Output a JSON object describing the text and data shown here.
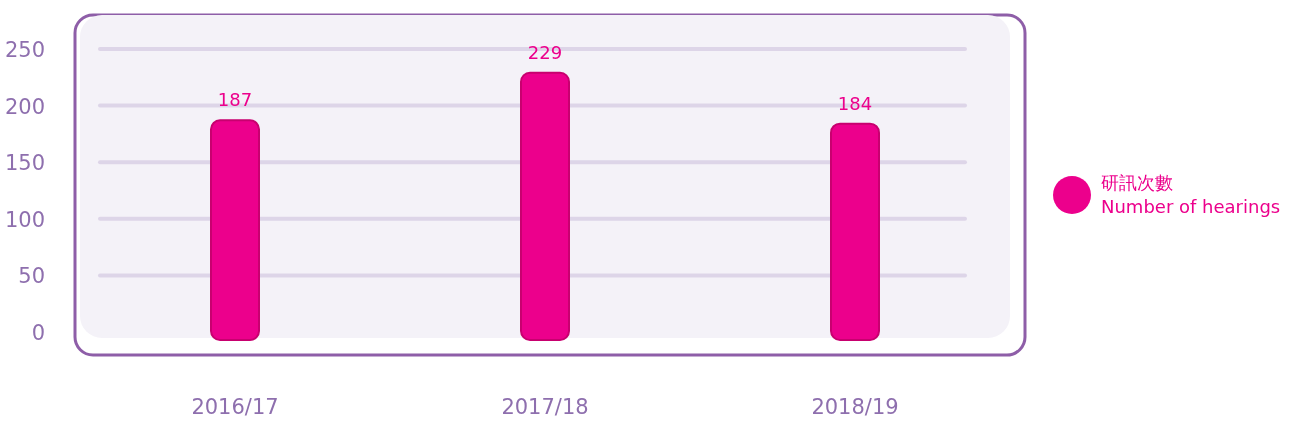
{
  "chart_data": {
    "type": "bar",
    "categories": [
      "2016/17",
      "2017/18",
      "2018/19"
    ],
    "series": [
      {
        "name": "研訊次數\nNumber of hearings",
        "color": "#ec008c",
        "values": [
          187,
          229,
          184
        ]
      }
    ],
    "ylim": [
      0,
      280
    ],
    "yticks": [
      0,
      50,
      100,
      150,
      200,
      250
    ],
    "data_labels": true,
    "grid": "y",
    "legend": "right"
  }
}
